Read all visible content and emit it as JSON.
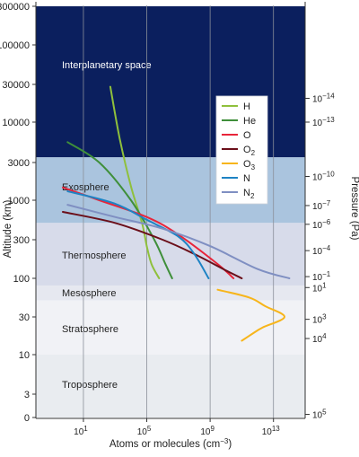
{
  "chart_data": {
    "type": "line",
    "xlabel": "Atoms or molecules (cm",
    "xlabel_exp": "−3",
    "xlabel_close": ")",
    "ylabel": "Altitude (km)",
    "y2label": "Pressure (Pa)",
    "x_scale": "log",
    "y_scale": "custom",
    "xlim": [
      0.01,
      1000000000000000.0
    ],
    "ylim": [
      0,
      300000
    ],
    "yticks": [
      {
        "label": "300000",
        "value": 300000
      },
      {
        "label": "100000",
        "value": 100000
      },
      {
        "label": "30000",
        "value": 30000
      },
      {
        "label": "10000",
        "value": 10000
      },
      {
        "label": "3000",
        "value": 3000
      },
      {
        "label": "1000",
        "value": 1000
      },
      {
        "label": "300",
        "value": 300
      },
      {
        "label": "100",
        "value": 100
      },
      {
        "label": "30",
        "value": 30
      },
      {
        "label": "10",
        "value": 10
      },
      {
        "label": "3",
        "value": 3
      },
      {
        "label": "0",
        "value": 0
      }
    ],
    "xticks": [
      {
        "base": "10",
        "exp": "1",
        "value": 10.0
      },
      {
        "base": "10",
        "exp": "5",
        "value": 100000.0
      },
      {
        "base": "10",
        "exp": "9",
        "value": 1000000000.0
      },
      {
        "base": "10",
        "exp": "13",
        "value": 10000000000000.0
      }
    ],
    "pressure_ticks": [
      {
        "base": "10",
        "exp": "−14",
        "altitude": 20000
      },
      {
        "base": "10",
        "exp": "−13",
        "altitude": 10000
      },
      {
        "base": "10",
        "exp": "−10",
        "altitude": 2000
      },
      {
        "base": "10",
        "exp": "−7",
        "altitude": 850
      },
      {
        "base": "10",
        "exp": "−6",
        "altitude": 480
      },
      {
        "base": "10",
        "exp": "−4",
        "altitude": 220
      },
      {
        "base": "10",
        "exp": "−1",
        "altitude": 105
      },
      {
        "base": "10",
        "exp": "1",
        "altitude": 75
      },
      {
        "base": "10",
        "exp": "3",
        "altitude": 28
      },
      {
        "base": "10",
        "exp": "4",
        "altitude": 16
      },
      {
        "base": "10",
        "exp": "5",
        "altitude": 0.4
      }
    ],
    "layers": [
      {
        "name": "Interplanetary space",
        "from": 3500,
        "to": 300000,
        "color": "#0b1f5e",
        "text_color": "#ffffff"
      },
      {
        "name": "Exosphere",
        "from": 500,
        "to": 3500,
        "color": "#aac4de",
        "text_color": "#222222"
      },
      {
        "name": "Thermosphere",
        "from": 80,
        "to": 500,
        "color": "#d7dbea",
        "text_color": "#222222"
      },
      {
        "name": "Mesosphere",
        "from": 50,
        "to": 80,
        "color": "#e6e8f0",
        "text_color": "#222222"
      },
      {
        "name": "Stratosphere",
        "from": 10,
        "to": 50,
        "color": "#f1f2f6",
        "text_color": "#222222"
      },
      {
        "name": "Troposphere",
        "from": 0,
        "to": 10,
        "color": "#e9ecf0",
        "text_color": "#222222"
      }
    ],
    "series": [
      {
        "name": "H",
        "sub": "",
        "color": "#8fc03c",
        "points": [
          [
            500.0,
            28000
          ],
          [
            2000.0,
            6000
          ],
          [
            10000.0,
            1500
          ],
          [
            50000.0,
            500
          ],
          [
            100000.0,
            250
          ],
          [
            200000.0,
            150
          ],
          [
            600000.0,
            100
          ]
        ]
      },
      {
        "name": "He",
        "sub": "",
        "color": "#3f8f3a",
        "points": [
          [
            1.0,
            5500
          ],
          [
            100.0,
            3000
          ],
          [
            10000.0,
            1000
          ],
          [
            300000.0,
            300
          ],
          [
            1500000.0,
            150
          ],
          [
            4000000.0,
            100
          ]
        ]
      },
      {
        "name": "O",
        "sub": "",
        "color": "#e8253a",
        "points": [
          [
            0.5,
            1450
          ],
          [
            100.0,
            1000
          ],
          [
            100000.0,
            600
          ],
          [
            10000000.0,
            350
          ],
          [
            3000000000.0,
            150
          ],
          [
            30000000000.0,
            100
          ]
        ]
      },
      {
        "name": "O",
        "sub": "2",
        "color": "#6b0f1a",
        "points": [
          [
            0.5,
            700
          ],
          [
            1000.0,
            500
          ],
          [
            1000000.0,
            300
          ],
          [
            100000000.0,
            200
          ],
          [
            10000000000.0,
            125
          ],
          [
            100000000000.0,
            100
          ]
        ]
      },
      {
        "name": "O",
        "sub": "3",
        "color": "#f7b51b",
        "points": [
          [
            3000000000.0,
            70
          ],
          [
            300000000000.0,
            55
          ],
          [
            3000000000000.0,
            42
          ],
          [
            50000000000000.0,
            30
          ],
          [
            2000000000000.0,
            22
          ],
          [
            400000000000.0,
            18
          ],
          [
            100000000000.0,
            15
          ]
        ]
      },
      {
        "name": "N",
        "sub": "",
        "color": "#1e83c4",
        "points": [
          [
            1.0,
            1300
          ],
          [
            1000.0,
            900
          ],
          [
            100000.0,
            550
          ],
          [
            10000000.0,
            330
          ],
          [
            100000000.0,
            200
          ],
          [
            800000000.0,
            100
          ]
        ]
      },
      {
        "name": "N",
        "sub": "2",
        "color": "#7f8fc2",
        "points": [
          [
            1.0,
            870
          ],
          [
            1000.0,
            600
          ],
          [
            1000000.0,
            420
          ],
          [
            1000000000.0,
            250
          ],
          [
            1000000000000.0,
            130
          ],
          [
            100000000000000.0,
            100
          ]
        ]
      }
    ],
    "legend_position": "center-right",
    "grid": "vertical"
  }
}
